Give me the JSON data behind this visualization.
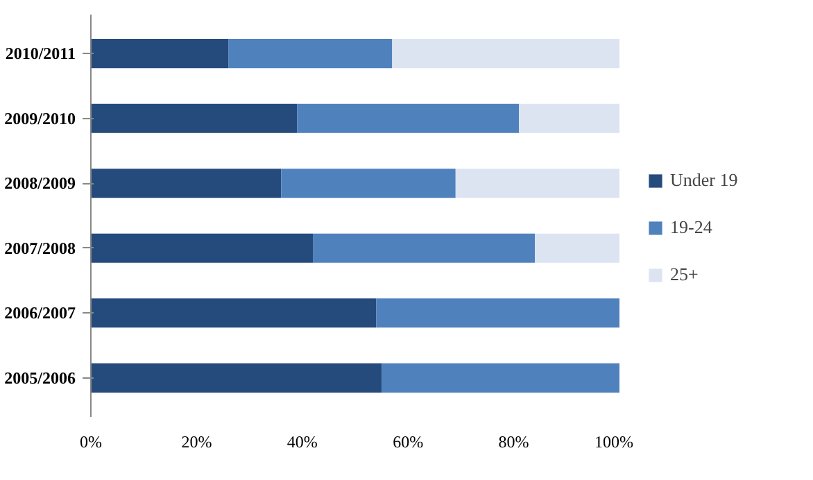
{
  "chart_data": {
    "type": "bar",
    "orientation": "horizontal",
    "stacked": true,
    "categories": [
      "2010/2011",
      "2009/2010",
      "2008/2009",
      "2007/2008",
      "2006/2007",
      "2005/2006"
    ],
    "series": [
      {
        "name": "Under 19",
        "color": "#254a7c",
        "values": [
          26,
          39,
          36,
          42,
          54,
          55
        ]
      },
      {
        "name": "19-24",
        "color": "#4f81bd",
        "values": [
          31,
          42,
          33,
          42,
          46,
          45
        ]
      },
      {
        "name": "25+",
        "color": "#dce4f2",
        "values": [
          43,
          19,
          31,
          16,
          0,
          0
        ]
      }
    ],
    "xlim": [
      0,
      100
    ],
    "xticks": [
      {
        "value": 0,
        "label": "0%"
      },
      {
        "value": 20,
        "label": "20%"
      },
      {
        "value": 40,
        "label": "40%"
      },
      {
        "value": 60,
        "label": "60%"
      },
      {
        "value": 80,
        "label": "80%"
      },
      {
        "value": 100,
        "label": "100%"
      }
    ],
    "grid": false,
    "legend": "right"
  }
}
